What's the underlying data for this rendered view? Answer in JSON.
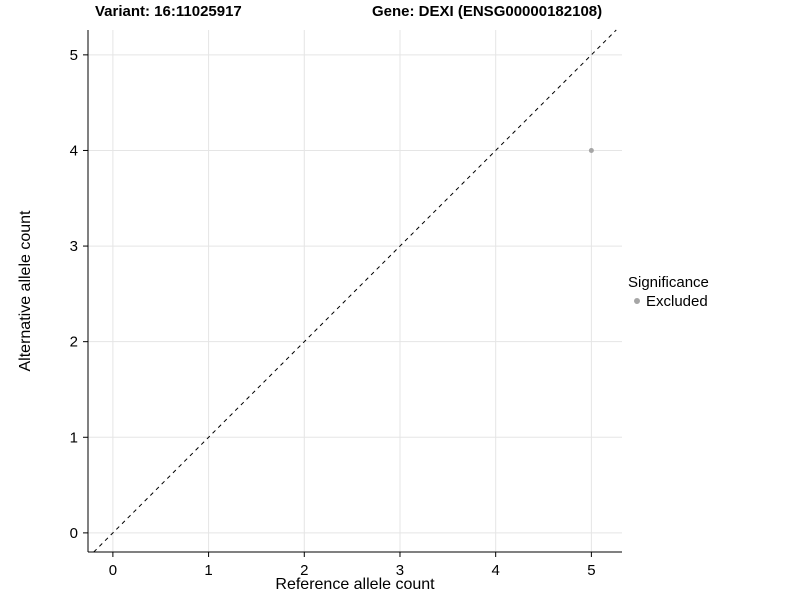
{
  "chart_data": {
    "type": "scatter",
    "title_left": "Variant: 16:11025917",
    "title_right": "Gene: DEXI (ENSG00000182108)",
    "xlabel": "Reference allele count",
    "ylabel": "Alternative allele count",
    "xlim": [
      -0.26,
      5.32
    ],
    "ylim": [
      -0.2,
      5.26
    ],
    "xticks": [
      0,
      1,
      2,
      3,
      4,
      5
    ],
    "yticks": [
      0,
      1,
      2,
      3,
      4,
      5
    ],
    "grid": true,
    "grid_color": "#e5e5e5",
    "axis_color": "#000000",
    "identity_line": {
      "style": "dashed",
      "color": "#000000",
      "from": -0.2,
      "to": 5.26
    },
    "series": [
      {
        "name": "Excluded",
        "color": "#a6a6a6",
        "point_radius": 2.5,
        "points": [
          {
            "x": 5,
            "y": 4
          }
        ]
      }
    ],
    "legend": {
      "title": "Significance",
      "position": "right",
      "items": [
        {
          "label": "Excluded",
          "color": "#a6a6a6"
        }
      ]
    }
  }
}
